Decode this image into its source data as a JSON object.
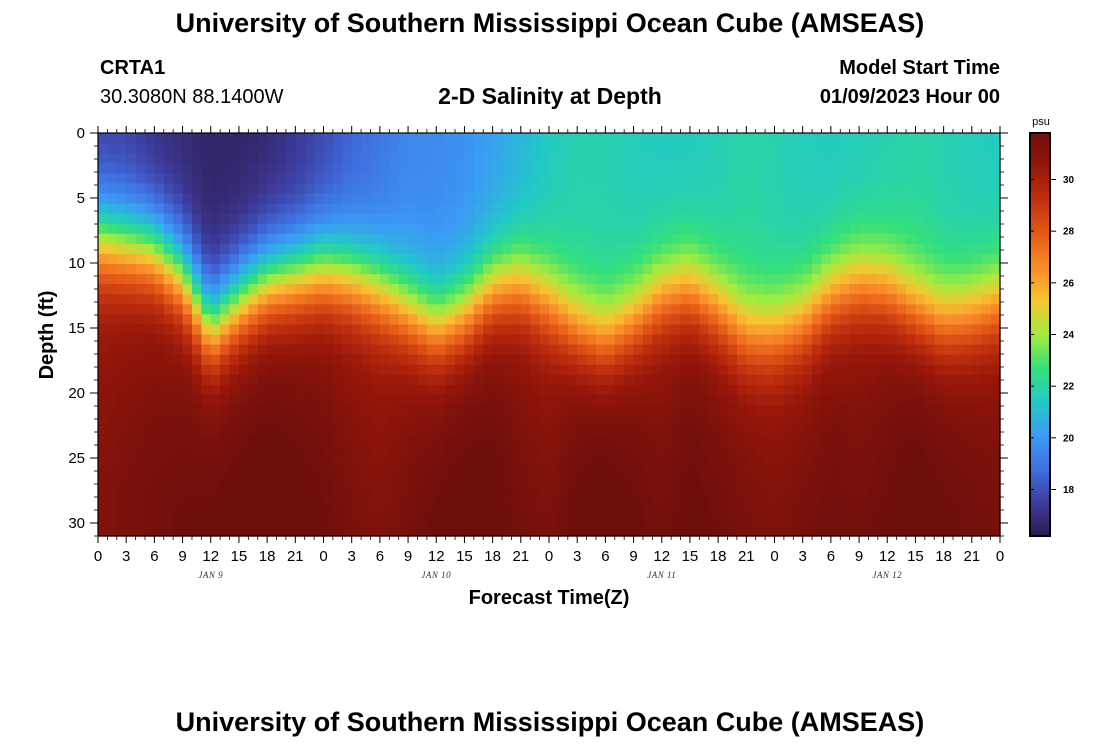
{
  "page": {
    "title": "University of Southern Mississippi Ocean Cube (AMSEAS)",
    "footer_title": "University of Southern Mississippi Ocean Cube (AMSEAS)",
    "station": {
      "name": "CRTA1",
      "coordinates": "30.3080N  88.1400W"
    },
    "plot_title": "2-D Salinity at Depth",
    "model_start": {
      "label": "Model Start Time",
      "value": "01/09/2023 Hour 00"
    }
  },
  "chart_data": {
    "type": "heatmap",
    "title": "2-D Salinity at Depth",
    "xlabel": "Forecast Time(Z)",
    "ylabel": "Depth (ft)",
    "x_range_hours": [
      0,
      96
    ],
    "x_tick_step_hours": 3,
    "x_tick_labels": [
      "0",
      "3",
      "6",
      "9",
      "12",
      "15",
      "18",
      "21",
      "0",
      "3",
      "6",
      "9",
      "12",
      "15",
      "18",
      "21",
      "0",
      "3",
      "6",
      "9",
      "12",
      "15",
      "18",
      "21",
      "0",
      "3",
      "6",
      "9",
      "12",
      "15",
      "18",
      "21",
      "0"
    ],
    "date_labels": [
      {
        "label": "JAN 9",
        "hour": 12
      },
      {
        "label": "JAN 10",
        "hour": 36
      },
      {
        "label": "JAN 11",
        "hour": 60
      },
      {
        "label": "JAN 12",
        "hour": 84
      }
    ],
    "y_range_ft": [
      0,
      31
    ],
    "y_tick_labels": [
      "0",
      "5",
      "10",
      "15",
      "20",
      "25",
      "30"
    ],
    "y_tick_values": [
      0,
      5,
      10,
      15,
      20,
      25,
      30
    ],
    "colorbar": {
      "unit": "psu",
      "range": [
        16.2,
        31.8
      ],
      "tick_labels": [
        "18",
        "20",
        "22",
        "24",
        "26",
        "28",
        "30"
      ],
      "tick_values": [
        18,
        20,
        22,
        24,
        26,
        28,
        30
      ],
      "colors": [
        "#2c1a4e",
        "#3d3d9e",
        "#3f6fe0",
        "#3b9cf5",
        "#22c9c8",
        "#35e07a",
        "#a3ec3e",
        "#f6c531",
        "#f98b2a",
        "#e55a17",
        "#c1300f",
        "#961609",
        "#6e0f0c"
      ]
    },
    "surface_salinity_psu": [
      17.5,
      17.5,
      17.0,
      16.8,
      16.6,
      16.6,
      16.8,
      17.2,
      17.8,
      18.5,
      19.0,
      19.5,
      19.6,
      19.8,
      20.2,
      20.8,
      21.5,
      21.8,
      21.8,
      21.6,
      21.5,
      21.5,
      21.7,
      22.0,
      21.8,
      21.6,
      21.5,
      21.6,
      21.8,
      22.0,
      21.8,
      21.6,
      21.5
    ],
    "halocline_depth_ft": [
      8.0,
      8.5,
      9.0,
      11.0,
      15.0,
      13.0,
      11.5,
      11.0,
      10.5,
      11.0,
      12.0,
      13.5,
      15.0,
      14.0,
      12.0,
      11.5,
      13.0,
      15.0,
      16.0,
      14.5,
      12.5,
      12.0,
      13.5,
      15.5,
      15.5,
      14.5,
      12.5,
      11.5,
      12.0,
      13.5,
      14.5,
      14.0,
      13.0
    ],
    "bottom_salinity_psu": [
      30.5,
      30.8,
      31.0,
      31.2,
      31.4,
      31.5,
      31.6,
      31.4,
      31.2,
      30.8,
      30.6,
      31.0,
      31.4,
      31.6,
      31.5,
      31.0,
      30.8,
      31.5,
      31.7,
      31.4,
      31.0,
      31.4,
      31.2,
      31.0,
      30.8,
      31.0,
      31.2,
      31.0,
      31.3,
      31.6,
      31.4,
      31.2,
      31.0
    ]
  }
}
